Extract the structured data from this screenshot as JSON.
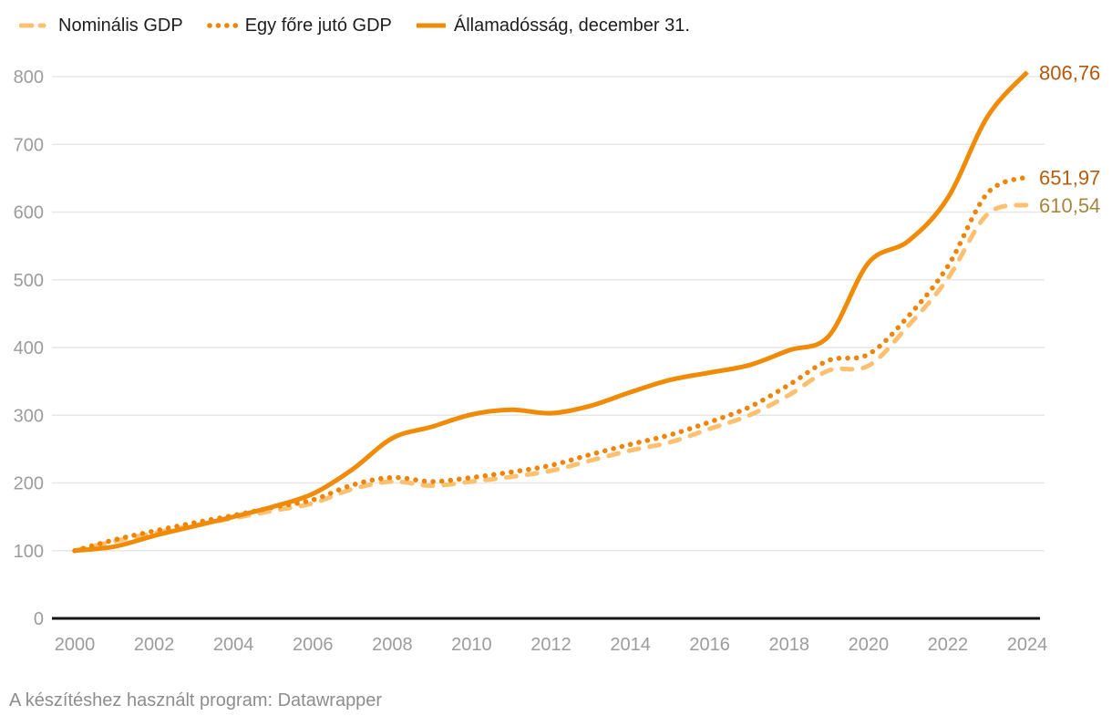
{
  "legend": {
    "items": [
      {
        "label": "Nominális GDP",
        "style": "dashed",
        "color": "#fcc170"
      },
      {
        "label": "Egy főre jutó GDP",
        "style": "dotted",
        "color": "#ee8408"
      },
      {
        "label": "Államadósság, december 31.",
        "style": "solid",
        "color": "#f08b07"
      }
    ]
  },
  "chart_data": {
    "type": "line",
    "title": "",
    "xlabel": "",
    "ylabel": "",
    "x": [
      2000,
      2001,
      2002,
      2003,
      2004,
      2005,
      2006,
      2007,
      2008,
      2009,
      2010,
      2011,
      2012,
      2013,
      2014,
      2015,
      2016,
      2017,
      2018,
      2019,
      2020,
      2021,
      2022,
      2023,
      2024
    ],
    "series": [
      {
        "name": "Nominális GDP",
        "style": "dashed",
        "color": "#fcc170",
        "label_color": "#a8853f",
        "end_label": "610,54",
        "values": [
          100,
          114,
          126,
          137,
          148,
          159,
          170,
          191,
          202,
          196,
          202,
          209,
          218,
          233,
          248,
          260,
          280,
          300,
          330,
          366,
          373,
          432,
          502,
          597,
          610.54
        ]
      },
      {
        "name": "Egy főre jutó GDP",
        "style": "dotted",
        "color": "#ee8408",
        "label_color": "#ba5c0f",
        "end_label": "651,97",
        "values": [
          100,
          116,
          129,
          141,
          152,
          164,
          175,
          197,
          208,
          202,
          208,
          216,
          226,
          242,
          257,
          271,
          290,
          312,
          345,
          381,
          390,
          446,
          520,
          628,
          651.97
        ]
      },
      {
        "name": "Államadósság, december 31.",
        "style": "solid",
        "color": "#f08b07",
        "label_color": "#b5570e",
        "end_label": "806,76",
        "values": [
          100,
          106,
          122,
          136,
          150,
          165,
          184,
          220,
          266,
          283,
          301,
          308,
          303,
          314,
          334,
          352,
          363,
          374,
          396,
          417,
          525,
          557,
          621,
          741,
          806.76
        ]
      }
    ],
    "xticks": [
      2000,
      2002,
      2004,
      2006,
      2008,
      2010,
      2012,
      2014,
      2016,
      2018,
      2020,
      2022,
      2024
    ],
    "yticks": [
      0,
      100,
      200,
      300,
      400,
      500,
      600,
      700,
      800
    ],
    "xlim": [
      2000,
      2024
    ],
    "ylim": [
      0,
      800
    ],
    "grid": true,
    "legend_position": "top"
  },
  "footer": {
    "text": "A készítéshez használt program: Datawrapper"
  },
  "colors": {
    "axis_label": "#9c9c9c",
    "baseline": "#151515",
    "gridline": "#e7e7e7",
    "legend_text": "#1d1d1d",
    "footer_text": "#8d8d8d",
    "background": "#ffffff"
  }
}
